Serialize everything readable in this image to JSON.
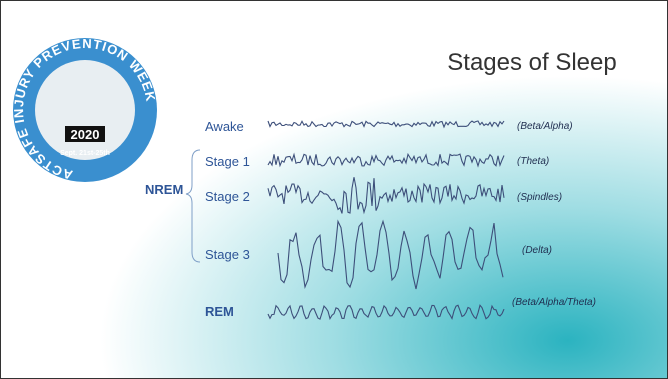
{
  "title": "Stages of Sleep",
  "logo": {
    "ring_text": "ACTSAFE INJURY PREVENTION WEEK",
    "year": "2020",
    "dates": "Sept. 21st-25th"
  },
  "group_label": "NREM",
  "stages": [
    {
      "label": "Awake",
      "wave": "(Beta/Alpha)"
    },
    {
      "label": "Stage 1",
      "wave": "(Theta)"
    },
    {
      "label": "Stage 2",
      "wave": "(Spindles)"
    },
    {
      "label": "Stage 3",
      "wave": "(Delta)"
    },
    {
      "label": "REM",
      "wave": "(Beta/Alpha/Theta)"
    }
  ]
}
